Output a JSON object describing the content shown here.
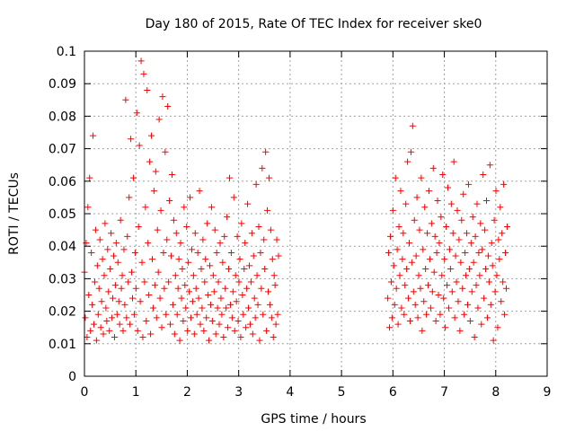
{
  "chart_data": {
    "type": "scatter",
    "title": "Day 180 of 2015, Rate Of TEC Index for receiver ske0",
    "xlabel": "GPS time / hours",
    "ylabel": "ROTI / TECUs",
    "xlim": [
      0,
      9
    ],
    "ylim": [
      0,
      0.1
    ],
    "x_ticks": [
      0,
      1,
      2,
      3,
      4,
      5,
      6,
      7,
      8,
      9
    ],
    "x_tick_labels": [
      "0",
      "1",
      "2",
      "3",
      "4",
      "5",
      "6",
      "7",
      "8",
      "9"
    ],
    "y_ticks": [
      0,
      0.01,
      0.02,
      0.03,
      0.04,
      0.05,
      0.06,
      0.07,
      0.08,
      0.09,
      0.1
    ],
    "y_tick_labels": [
      "0",
      "0.01",
      "0.02",
      "0.03",
      "0.04",
      "0.05",
      "0.06",
      "0.07",
      "0.08",
      "0.09",
      "0.1"
    ],
    "grid": true,
    "marker": "+",
    "marker_color": "#ff0000",
    "series": [
      {
        "name": "ROTI",
        "segments": [
          {
            "x_start": 0.0,
            "x_end": 4.15,
            "dx": 0.0167,
            "y": [
              0.032,
              0.018,
              0.041,
              0.012,
              0.052,
              0.025,
              0.061,
              0.014,
              0.038,
              0.022,
              0.074,
              0.016,
              0.029,
              0.045,
              0.011,
              0.034,
              0.019,
              0.027,
              0.042,
              0.015,
              0.023,
              0.036,
              0.013,
              0.031,
              0.047,
              0.021,
              0.017,
              0.039,
              0.026,
              0.014,
              0.033,
              0.044,
              0.018,
              0.024,
              0.037,
              0.012,
              0.028,
              0.041,
              0.019,
              0.035,
              0.023,
              0.016,
              0.048,
              0.027,
              0.031,
              0.014,
              0.039,
              0.022,
              0.085,
              0.018,
              0.043,
              0.029,
              0.055,
              0.016,
              0.073,
              0.032,
              0.024,
              0.061,
              0.019,
              0.038,
              0.027,
              0.081,
              0.014,
              0.046,
              0.071,
              0.023,
              0.097,
              0.035,
              0.012,
              0.093,
              0.029,
              0.052,
              0.017,
              0.088,
              0.041,
              0.025,
              0.066,
              0.013,
              0.074,
              0.036,
              0.021,
              0.057,
              0.028,
              0.063,
              0.018,
              0.045,
              0.032,
              0.079,
              0.024,
              0.051,
              0.015,
              0.086,
              0.038,
              0.027,
              0.069,
              0.019,
              0.042,
              0.083,
              0.029,
              0.054,
              0.016,
              0.037,
              0.062,
              0.022,
              0.048,
              0.013,
              0.031,
              0.044,
              0.019,
              0.027,
              0.036,
              0.011,
              0.041,
              0.024,
              0.033,
              0.017,
              0.052,
              0.028,
              0.021,
              0.046,
              0.014,
              0.035,
              0.026,
              0.055,
              0.018,
              0.039,
              0.023,
              0.031,
              0.013,
              0.044,
              0.027,
              0.019,
              0.038,
              0.024,
              0.057,
              0.016,
              0.033,
              0.021,
              0.042,
              0.014,
              0.029,
              0.036,
              0.018,
              0.047,
              0.025,
              0.011,
              0.034,
              0.022,
              0.052,
              0.017,
              0.031,
              0.026,
              0.045,
              0.013,
              0.038,
              0.021,
              0.029,
              0.016,
              0.041,
              0.024,
              0.019,
              0.035,
              0.012,
              0.043,
              0.027,
              0.021,
              0.049,
              0.015,
              0.033,
              0.061,
              0.022,
              0.038,
              0.018,
              0.026,
              0.055,
              0.014,
              0.031,
              0.023,
              0.043,
              0.017,
              0.029,
              0.036,
              0.012,
              0.047,
              0.025,
              0.019,
              0.033,
              0.041,
              0.015,
              0.027,
              0.053,
              0.021,
              0.034,
              0.016,
              0.029,
              0.044,
              0.013,
              0.037,
              0.024,
              0.018,
              0.059,
              0.031,
              0.022,
              0.046,
              0.011,
              0.038,
              0.027,
              0.064,
              0.019,
              0.042,
              0.033,
              0.069,
              0.014,
              0.051,
              0.026,
              0.061,
              0.022,
              0.045,
              0.018,
              0.036,
              0.012,
              0.031,
              0.028,
              0.016,
              0.042,
              0.019,
              0.037
            ]
          },
          {
            "x_start": 5.9,
            "x_end": 8.25,
            "dx": 0.0167,
            "y": [
              0.024,
              0.038,
              0.015,
              0.043,
              0.029,
              0.018,
              0.051,
              0.034,
              0.022,
              0.061,
              0.027,
              0.039,
              0.016,
              0.046,
              0.031,
              0.057,
              0.021,
              0.036,
              0.044,
              0.019,
              0.028,
              0.053,
              0.033,
              0.066,
              0.024,
              0.041,
              0.017,
              0.069,
              0.035,
              0.077,
              0.026,
              0.048,
              0.022,
              0.037,
              0.055,
              0.018,
              0.031,
              0.045,
              0.027,
              0.061,
              0.014,
              0.039,
              0.023,
              0.052,
              0.033,
              0.019,
              0.044,
              0.028,
              0.057,
              0.036,
              0.021,
              0.047,
              0.026,
              0.064,
              0.032,
              0.043,
              0.017,
              0.038,
              0.054,
              0.025,
              0.041,
              0.019,
              0.049,
              0.031,
              0.062,
              0.024,
              0.036,
              0.015,
              0.046,
              0.028,
              0.058,
              0.021,
              0.039,
              0.033,
              0.053,
              0.026,
              0.044,
              0.066,
              0.018,
              0.037,
              0.029,
              0.051,
              0.023,
              0.042,
              0.014,
              0.035,
              0.048,
              0.027,
              0.056,
              0.019,
              0.038,
              0.031,
              0.044,
              0.022,
              0.059,
              0.033,
              0.017,
              0.041,
              0.026,
              0.049,
              0.035,
              0.012,
              0.043,
              0.028,
              0.053,
              0.021,
              0.038,
              0.031,
              0.047,
              0.016,
              0.039,
              0.062,
              0.024,
              0.045,
              0.033,
              0.054,
              0.018,
              0.037,
              0.029,
              0.065,
              0.022,
              0.041,
              0.034,
              0.011,
              0.048,
              0.026,
              0.057,
              0.031,
              0.015,
              0.042,
              0.036,
              0.052,
              0.023,
              0.044,
              0.029,
              0.059,
              0.019,
              0.038,
              0.027,
              0.046
            ]
          }
        ]
      }
    ]
  }
}
